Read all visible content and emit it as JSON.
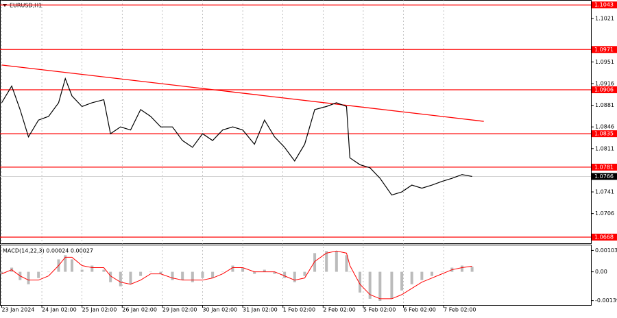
{
  "chart_data": {
    "type": "line",
    "title": "EURUSD,H1",
    "xlim": [
      -1,
      352
    ],
    "xticks": [
      {
        "value": 0,
        "label": "23 Jan 2024"
      },
      {
        "value": 24,
        "label": "24 Jan 02:00"
      },
      {
        "value": 48,
        "label": "25 Jan 02:00"
      },
      {
        "value": 72,
        "label": "26 Jan 02:00"
      },
      {
        "value": 96,
        "label": "29 Jan 02:00"
      },
      {
        "value": 120,
        "label": "30 Jan 02:00"
      },
      {
        "value": 144,
        "label": "31 Jan 02:00"
      },
      {
        "value": 168,
        "label": "1 Feb 02:00"
      },
      {
        "value": 192,
        "label": "2 Feb 02:00"
      },
      {
        "value": 216,
        "label": "5 Feb 02:00"
      },
      {
        "value": 240,
        "label": "6 Feb 02:00"
      },
      {
        "value": 264,
        "label": "7 Feb 02:00"
      }
    ],
    "ylim": [
      1.0658,
      1.1051
    ],
    "yticks": [
      1.1021,
      1.0951,
      1.0916,
      1.0881,
      1.0846,
      1.0811,
      1.0741,
      1.0706
    ],
    "x": [
      0,
      6,
      11,
      16,
      22,
      28,
      34,
      38,
      42,
      48,
      54,
      61,
      65,
      71,
      77,
      83,
      89,
      95,
      102,
      108,
      114,
      120,
      126,
      132,
      138,
      144,
      151,
      157,
      163,
      169,
      175,
      181,
      187,
      194,
      200,
      206,
      208,
      214,
      220,
      226,
      233,
      239,
      245,
      251,
      257,
      263,
      269,
      275,
      281
    ],
    "series": [
      {
        "name": "EURUSD",
        "color": "#000000",
        "values": [
          1.0885,
          1.0912,
          1.0874,
          1.083,
          1.0857,
          1.0863,
          1.0885,
          1.0924,
          1.0896,
          1.0879,
          1.0885,
          1.089,
          1.0835,
          1.0846,
          1.0841,
          1.0874,
          1.0863,
          1.0846,
          1.0846,
          1.0824,
          1.0813,
          1.0835,
          1.0824,
          1.0841,
          1.0846,
          1.0841,
          1.0818,
          1.0857,
          1.083,
          1.0813,
          1.0791,
          1.0818,
          1.0874,
          1.0879,
          1.0885,
          1.0879,
          1.0796,
          1.0785,
          1.078,
          1.0763,
          1.0736,
          1.0741,
          1.0752,
          1.0747,
          1.0752,
          1.0758,
          1.0763,
          1.0769,
          1.0766
        ]
      }
    ],
    "levels": [
      1.1043,
      1.0971,
      1.0906,
      1.0835,
      1.0781,
      1.0668
    ],
    "level_color": "#ff0000",
    "current_price": 1.0766,
    "trendline": {
      "x": [
        0,
        288
      ],
      "y": [
        1.0946,
        1.0855
      ]
    },
    "macd": {
      "label": "MACD(14,22,3) 0.00024 0.00027",
      "ylim": [
        -0.0016,
        0.001275
      ],
      "yticks": [
        0.00103,
        {
          "value": 0,
          "label": "0.00"
        },
        -0.00139
      ],
      "histogram": [
        -0.0001,
        0.0002,
        -0.0004,
        -0.0006,
        -0.0003,
        0.0,
        0.0006,
        0.0008,
        0.0006,
        0.0001,
        0.0003,
        0.0001,
        -0.0005,
        -0.0007,
        -0.0006,
        -0.0002,
        0.0,
        -0.0001,
        -0.0004,
        -0.0004,
        -0.0005,
        -0.0003,
        -0.0003,
        0.0,
        0.0003,
        0.0002,
        -0.0001,
        0.0001,
        -0.0001,
        -0.0003,
        -0.0005,
        -0.0002,
        0.0009,
        0.001,
        0.001,
        0.0008,
        0.0,
        -0.001,
        -0.0013,
        -0.0014,
        -0.0013,
        -0.0009,
        -0.0006,
        -0.0004,
        -0.0002,
        0.0,
        0.0002,
        0.0003,
        0.00024
      ],
      "signal": [
        -0.0001,
        0.0001,
        -0.0002,
        -0.0004,
        -0.0004,
        -0.0002,
        0.0003,
        0.0007,
        0.0007,
        0.0003,
        0.0002,
        0.0002,
        -0.0002,
        -0.0005,
        -0.0006,
        -0.0004,
        -0.0001,
        -0.0001,
        -0.0003,
        -0.0004,
        -0.0004,
        -0.0004,
        -0.0003,
        -0.0001,
        0.0002,
        0.0002,
        0.0,
        0.0,
        0.0,
        -0.0002,
        -0.0004,
        -0.0003,
        0.0005,
        0.0009,
        0.001,
        0.0009,
        0.0003,
        -0.0006,
        -0.0011,
        -0.0013,
        -0.0013,
        -0.0011,
        -0.0008,
        -0.0005,
        -0.0003,
        -0.0001,
        0.0001,
        0.0002,
        0.00027
      ]
    }
  }
}
